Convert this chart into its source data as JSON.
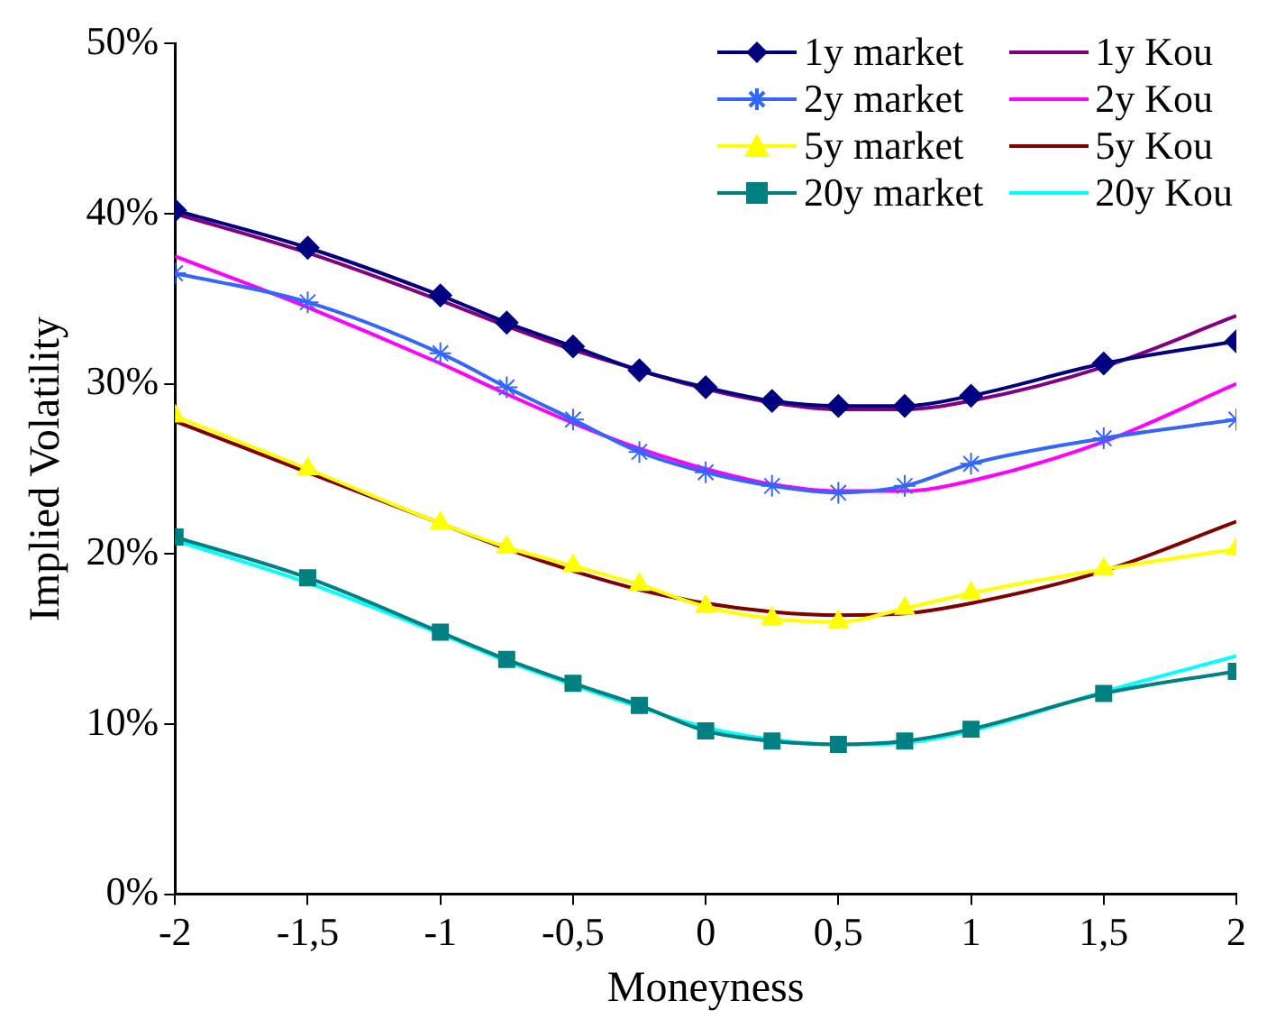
{
  "chart_data": {
    "type": "line",
    "xlabel": "Moneyness",
    "ylabel": "Implied Volatility",
    "x": [
      -2,
      -1.5,
      -1,
      -0.75,
      -0.5,
      -0.25,
      0,
      0.25,
      0.5,
      0.75,
      1,
      1.5,
      2
    ],
    "xlim": [
      -2,
      2
    ],
    "xticks": [
      -2,
      {
        "value": -1.5,
        "label": "-1,5"
      },
      -1,
      {
        "value": -0.5,
        "label": "-0,5"
      },
      0,
      {
        "value": 0.5,
        "label": "0,5"
      },
      1,
      {
        "value": 1.5,
        "label": "1,5"
      },
      2
    ],
    "ylim": [
      0,
      50
    ],
    "yticks": [
      {
        "value": 0,
        "label": "0%"
      },
      {
        "value": 10,
        "label": "10%"
      },
      {
        "value": 20,
        "label": "20%"
      },
      {
        "value": 30,
        "label": "30%"
      },
      {
        "value": 40,
        "label": "40%"
      },
      {
        "value": 50,
        "label": "50%"
      }
    ],
    "grid": false,
    "legend": "top right",
    "series": [
      {
        "name": "1y market",
        "color": "#000080",
        "marker": "diamond",
        "values": [
          40.2,
          38.0,
          35.2,
          33.6,
          32.2,
          30.8,
          29.8,
          29.0,
          28.7,
          28.7,
          29.3,
          31.2,
          32.5
        ]
      },
      {
        "name": "1y Kou",
        "color": "#800080",
        "marker": "none",
        "values": [
          40.0,
          37.7,
          34.9,
          33.4,
          32.0,
          30.8,
          29.7,
          28.9,
          28.5,
          28.5,
          29.0,
          31.0,
          34.0
        ]
      },
      {
        "name": "2y market",
        "color": "#3366ff",
        "marker": "cross",
        "values": [
          36.5,
          34.8,
          31.8,
          29.8,
          27.9,
          26.0,
          24.8,
          24.0,
          23.6,
          24.0,
          25.3,
          26.8,
          27.9
        ]
      },
      {
        "name": "2y Kou",
        "color": "#ff00ff",
        "marker": "none",
        "values": [
          37.5,
          34.5,
          31.2,
          29.4,
          27.7,
          26.2,
          25.0,
          24.1,
          23.7,
          23.7,
          24.3,
          26.6,
          30.0
        ]
      },
      {
        "name": "5y market",
        "color": "#ffff00",
        "marker": "triangle",
        "values": [
          28.1,
          25.0,
          21.8,
          20.4,
          19.3,
          18.2,
          16.9,
          16.2,
          16.0,
          16.8,
          17.7,
          19.1,
          20.3
        ]
      },
      {
        "name": "5y Kou",
        "color": "#800000",
        "marker": "none",
        "values": [
          27.8,
          24.8,
          21.8,
          20.3,
          19.0,
          17.9,
          17.1,
          16.6,
          16.4,
          16.5,
          17.1,
          19.0,
          21.9
        ]
      },
      {
        "name": "20y market",
        "color": "#008080",
        "marker": "square",
        "values": [
          21.0,
          18.6,
          15.4,
          13.8,
          12.4,
          11.1,
          9.6,
          9.0,
          8.8,
          9.0,
          9.7,
          11.8,
          13.1
        ]
      },
      {
        "name": "20y Kou",
        "color": "#00ffff",
        "marker": "none",
        "values": [
          20.8,
          18.3,
          15.3,
          13.7,
          12.3,
          11.0,
          9.8,
          9.1,
          8.8,
          8.9,
          9.6,
          11.9,
          14.0
        ]
      }
    ]
  }
}
